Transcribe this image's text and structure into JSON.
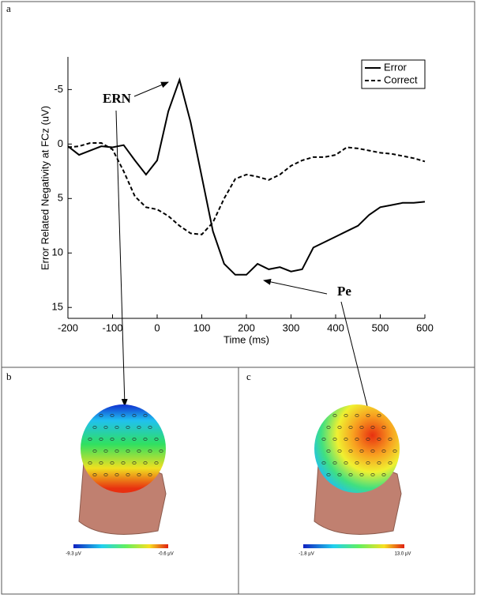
{
  "chart_data": {
    "type": "line",
    "panel_label": "a",
    "xlabel": "Time (ms)",
    "ylabel": "Error Related Negativity at FCz (uV)",
    "x": [
      -200,
      -175,
      -150,
      -125,
      -100,
      -75,
      -50,
      -25,
      0,
      25,
      50,
      75,
      100,
      125,
      150,
      175,
      200,
      225,
      250,
      275,
      300,
      325,
      350,
      375,
      400,
      425,
      450,
      475,
      500,
      525,
      550,
      575,
      600
    ],
    "series": [
      {
        "name": "Error",
        "color": "#000000",
        "style": "solid",
        "values": [
          0.2,
          1.0,
          0.6,
          0.2,
          0.3,
          0.1,
          1.5,
          2.8,
          1.5,
          -3.0,
          -5.9,
          -2.0,
          3.0,
          8.0,
          11.0,
          12.0,
          12.0,
          11.0,
          11.5,
          11.3,
          11.7,
          11.5,
          9.5,
          9.0,
          8.5,
          8.0,
          7.5,
          6.5,
          5.8,
          5.6,
          5.4,
          5.4,
          5.3
        ]
      },
      {
        "name": "Correct",
        "color": "#000000",
        "style": "dashed",
        "values": [
          0.3,
          0.2,
          -0.1,
          -0.1,
          0.5,
          2.5,
          4.8,
          5.8,
          6.0,
          6.6,
          7.5,
          8.2,
          8.3,
          7.2,
          5.0,
          3.2,
          2.8,
          3.0,
          3.3,
          2.8,
          2.0,
          1.5,
          1.2,
          1.2,
          1.0,
          0.3,
          0.4,
          0.6,
          0.8,
          0.9,
          1.1,
          1.3,
          1.6
        ]
      }
    ],
    "xlim": [
      -200,
      600
    ],
    "xticks": [
      -200,
      -100,
      0,
      100,
      200,
      300,
      400,
      500,
      600
    ],
    "ylim": [
      -8,
      16
    ],
    "y_inverted": true,
    "yticks": [
      -5,
      0,
      5,
      10,
      15
    ],
    "legend": "upper right",
    "annotations": [
      "ERN",
      "Pe"
    ]
  },
  "panels": [
    {
      "label": "b",
      "colorbar_min": "-9.3 µV",
      "colorbar_max": "-0.6 µV"
    },
    {
      "label": "c",
      "colorbar_min": "-1.8 µV",
      "colorbar_max": "13.0 µV"
    }
  ]
}
